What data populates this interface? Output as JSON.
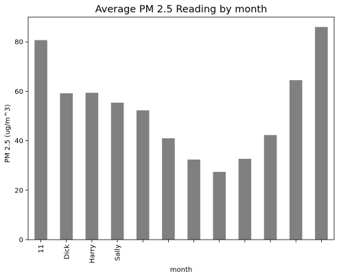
{
  "chart_data": {
    "type": "bar",
    "title": "Average PM 2.5 Reading by month",
    "xlabel": "month",
    "ylabel": "PM 2.5 (ug/m^3)",
    "categories": [
      "11",
      "Dick",
      "Harry",
      "Sally",
      "",
      "",
      "",
      "",
      "",
      "",
      "",
      ""
    ],
    "values": [
      80.7,
      59.2,
      59.4,
      55.4,
      52.3,
      41.0,
      32.4,
      27.4,
      32.7,
      42.3,
      64.5,
      86.0
    ],
    "ylim": [
      0,
      90
    ],
    "yticks": [
      0,
      20,
      40,
      60,
      80
    ],
    "bar_color": "#808080",
    "grid": false,
    "legend": "none"
  }
}
